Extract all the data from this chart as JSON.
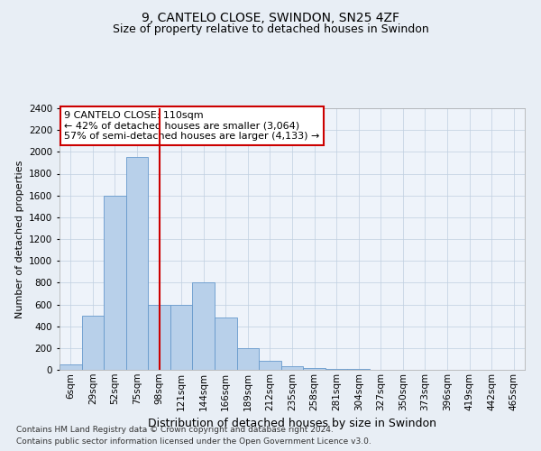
{
  "title1": "9, CANTELO CLOSE, SWINDON, SN25 4ZF",
  "title2": "Size of property relative to detached houses in Swindon",
  "xlabel": "Distribution of detached houses by size in Swindon",
  "ylabel": "Number of detached properties",
  "footer1": "Contains HM Land Registry data © Crown copyright and database right 2024.",
  "footer2": "Contains public sector information licensed under the Open Government Licence v3.0.",
  "annotation_title": "9 CANTELO CLOSE: 110sqm",
  "annotation_line1": "← 42% of detached houses are smaller (3,064)",
  "annotation_line2": "57% of semi-detached houses are larger (4,133) →",
  "bar_labels": [
    "6sqm",
    "29sqm",
    "52sqm",
    "75sqm",
    "98sqm",
    "121sqm",
    "144sqm",
    "166sqm",
    "189sqm",
    "212sqm",
    "235sqm",
    "258sqm",
    "281sqm",
    "304sqm",
    "327sqm",
    "350sqm",
    "373sqm",
    "396sqm",
    "419sqm",
    "442sqm",
    "465sqm"
  ],
  "bar_values": [
    50,
    500,
    1600,
    1950,
    600,
    600,
    800,
    480,
    200,
    80,
    30,
    20,
    10,
    5,
    0,
    0,
    0,
    0,
    0,
    0,
    0
  ],
  "bar_color": "#b8d0ea",
  "bar_edge_color": "#6699cc",
  "vline_color": "#cc0000",
  "vline_position": 4.5,
  "ylim": [
    0,
    2400
  ],
  "yticks": [
    0,
    200,
    400,
    600,
    800,
    1000,
    1200,
    1400,
    1600,
    1800,
    2000,
    2200,
    2400
  ],
  "bg_color": "#e8eef5",
  "plot_bg_color": "#eef3fa",
  "annotation_box_edge_color": "#cc0000",
  "title1_fontsize": 10,
  "title2_fontsize": 9,
  "xlabel_fontsize": 9,
  "ylabel_fontsize": 8,
  "tick_fontsize": 7.5,
  "annotation_fontsize": 8,
  "footer_fontsize": 6.5
}
